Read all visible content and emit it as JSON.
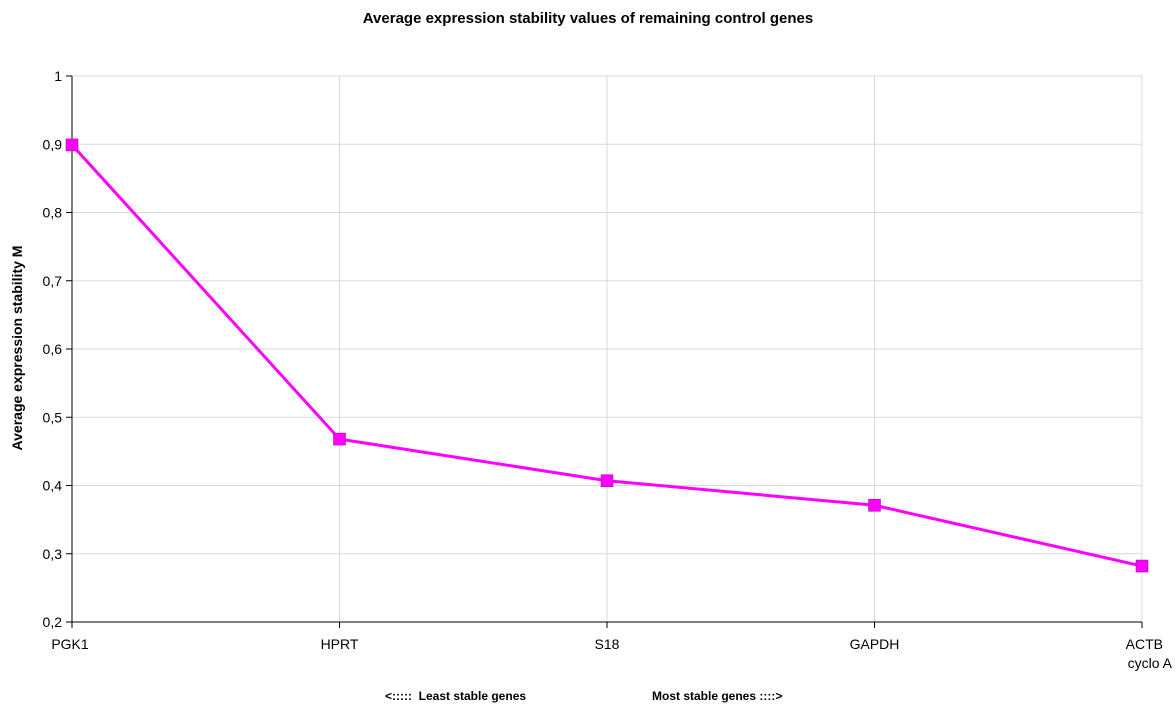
{
  "chart_data": {
    "type": "line",
    "title": "Average expression stability values of remaining control genes",
    "ylabel": "Average expression stability M",
    "categories": [
      "PGK1",
      "HPRT",
      "S18",
      "GAPDH",
      "ACTB\ncyclo A"
    ],
    "x_caption_left": "<:::::  Least stable genes",
    "x_caption_right": "Most stable genes ::::>",
    "yticks": [
      "0,2",
      "0,3",
      "0,4",
      "0,5",
      "0,6",
      "0,7",
      "0,8",
      "0,9",
      "1"
    ],
    "ylim": [
      0.2,
      1.0
    ],
    "series": [
      {
        "values": [
          0.899,
          0.468,
          0.407,
          0.371,
          0.282
        ],
        "color": "#ff00ff"
      }
    ],
    "grid": true
  }
}
